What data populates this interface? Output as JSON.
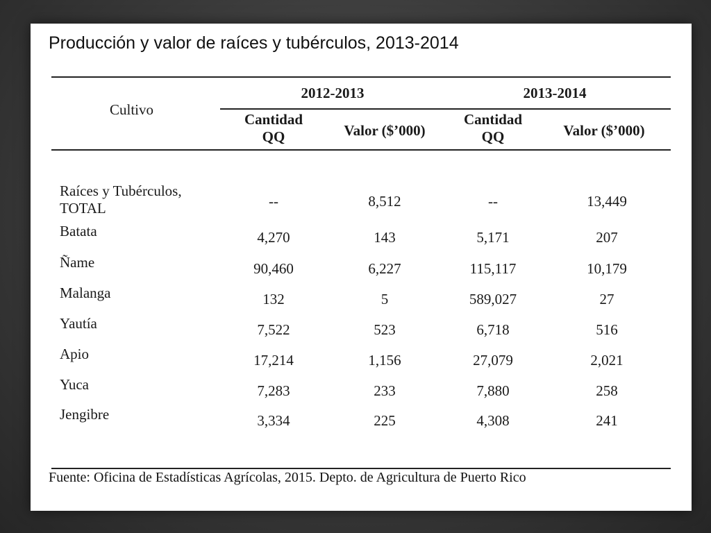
{
  "slide_title": "Producción y valor de raíces y tubérculos, 2013-2014",
  "table": {
    "crop_header": "Cultivo",
    "periods": [
      "2012-2013",
      "2013-2014"
    ],
    "qty_header_line1": "Cantidad",
    "qty_header_line2": "QQ",
    "value_header": "Valor ($’000)",
    "rows": [
      {
        "crop_line1": "Raíces y Tubérculos,",
        "crop_line2": "TOTAL",
        "q1": "--",
        "v1": "8,512",
        "q2": "--",
        "v2": "13,449"
      },
      {
        "crop_line1": "Batata",
        "q1": "4,270",
        "v1": "143",
        "q2": "5,171",
        "v2": "207"
      },
      {
        "crop_line1": "Ñame",
        "q1": "90,460",
        "v1": "6,227",
        "q2": "115,117",
        "v2": "10,179"
      },
      {
        "crop_line1": "Malanga",
        "q1": "132",
        "v1": "5",
        "q2": "589,027",
        "v2": "27"
      },
      {
        "crop_line1": "Yautía",
        "q1": "7,522",
        "v1": "523",
        "q2": "6,718",
        "v2": "516"
      },
      {
        "crop_line1": "Apio",
        "q1": "17,214",
        "v1": "1,156",
        "q2": "27,079",
        "v2": "2,021"
      },
      {
        "crop_line1": "Yuca",
        "q1": "7,283",
        "v1": "233",
        "q2": "7,880",
        "v2": "258"
      },
      {
        "crop_line1": "Jengibre",
        "q1": "3,334",
        "v1": "225",
        "q2": "4,308",
        "v2": "241"
      }
    ]
  },
  "footer": "Fuente: Oficina de Estadísticas Agrícolas, 2015. Depto. de Agricultura de Puerto Rico"
}
